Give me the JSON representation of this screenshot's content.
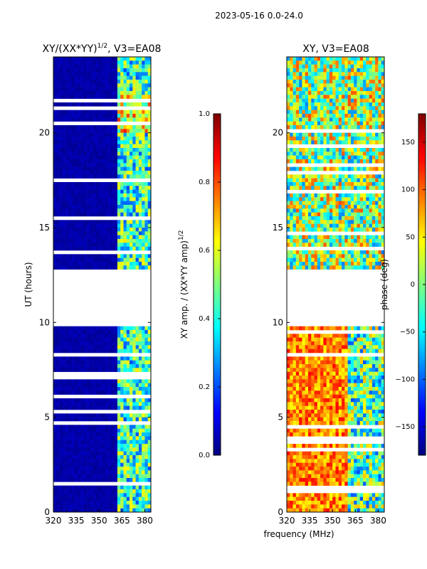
{
  "suptitle": "2023-05-16 0.0-24.0",
  "xlabel": "frequency (MHz)",
  "colors": {
    "jet": [
      "#00007f",
      "#0000ff",
      "#007fff",
      "#00ffff",
      "#7fff7f",
      "#ffff00",
      "#ff7f00",
      "#ff0000",
      "#7f0000"
    ]
  },
  "chart_data": [
    {
      "type": "heatmap",
      "title_main": "XY/(XX*YY)",
      "title_sup": "1/2",
      "title_tail": ", V3=EA08",
      "xlabel": "",
      "ylabel": "UT (hours)",
      "xlim": [
        320,
        384
      ],
      "ylim": [
        0,
        24
      ],
      "xticks": [
        "320",
        "335",
        "350",
        "365",
        "380"
      ],
      "xtick_values": [
        320,
        335,
        350,
        365,
        380
      ],
      "yticks": [
        "0",
        "5",
        "10",
        "15",
        "20"
      ],
      "ytick_values": [
        0,
        5,
        10,
        15,
        20
      ],
      "data_gap_hours": [
        9.85,
        12.9
      ],
      "colorbar": {
        "label_main": "XY amp. / (XX*YY amp)",
        "label_sup": "1/2",
        "range": [
          0.0,
          1.0
        ],
        "ticks": [
          "0.0",
          "0.2",
          "0.4",
          "0.6",
          "0.8",
          "1.0"
        ],
        "tick_values": [
          0.0,
          0.2,
          0.4,
          0.6,
          0.8,
          1.0
        ]
      }
    },
    {
      "type": "heatmap",
      "title": "XY, V3=EA08",
      "xlabel": "",
      "ylabel": "",
      "xlim": [
        320,
        384
      ],
      "ylim": [
        0,
        24
      ],
      "xticks": [
        "320",
        "335",
        "350",
        "365",
        "380"
      ],
      "xtick_values": [
        320,
        335,
        350,
        365,
        380
      ],
      "yticks": [
        "0",
        "5",
        "10",
        "15",
        "20"
      ],
      "ytick_values": [
        0,
        5,
        10,
        15,
        20
      ],
      "data_gap_hours": [
        9.85,
        12.9
      ],
      "colorbar": {
        "label": "phase (deg)",
        "range": [
          -180,
          180
        ],
        "ticks": [
          "−150",
          "−100",
          "−50",
          "0",
          "50",
          "100",
          "150"
        ],
        "tick_values": [
          -150,
          -100,
          -50,
          0,
          50,
          100,
          150
        ]
      }
    }
  ]
}
